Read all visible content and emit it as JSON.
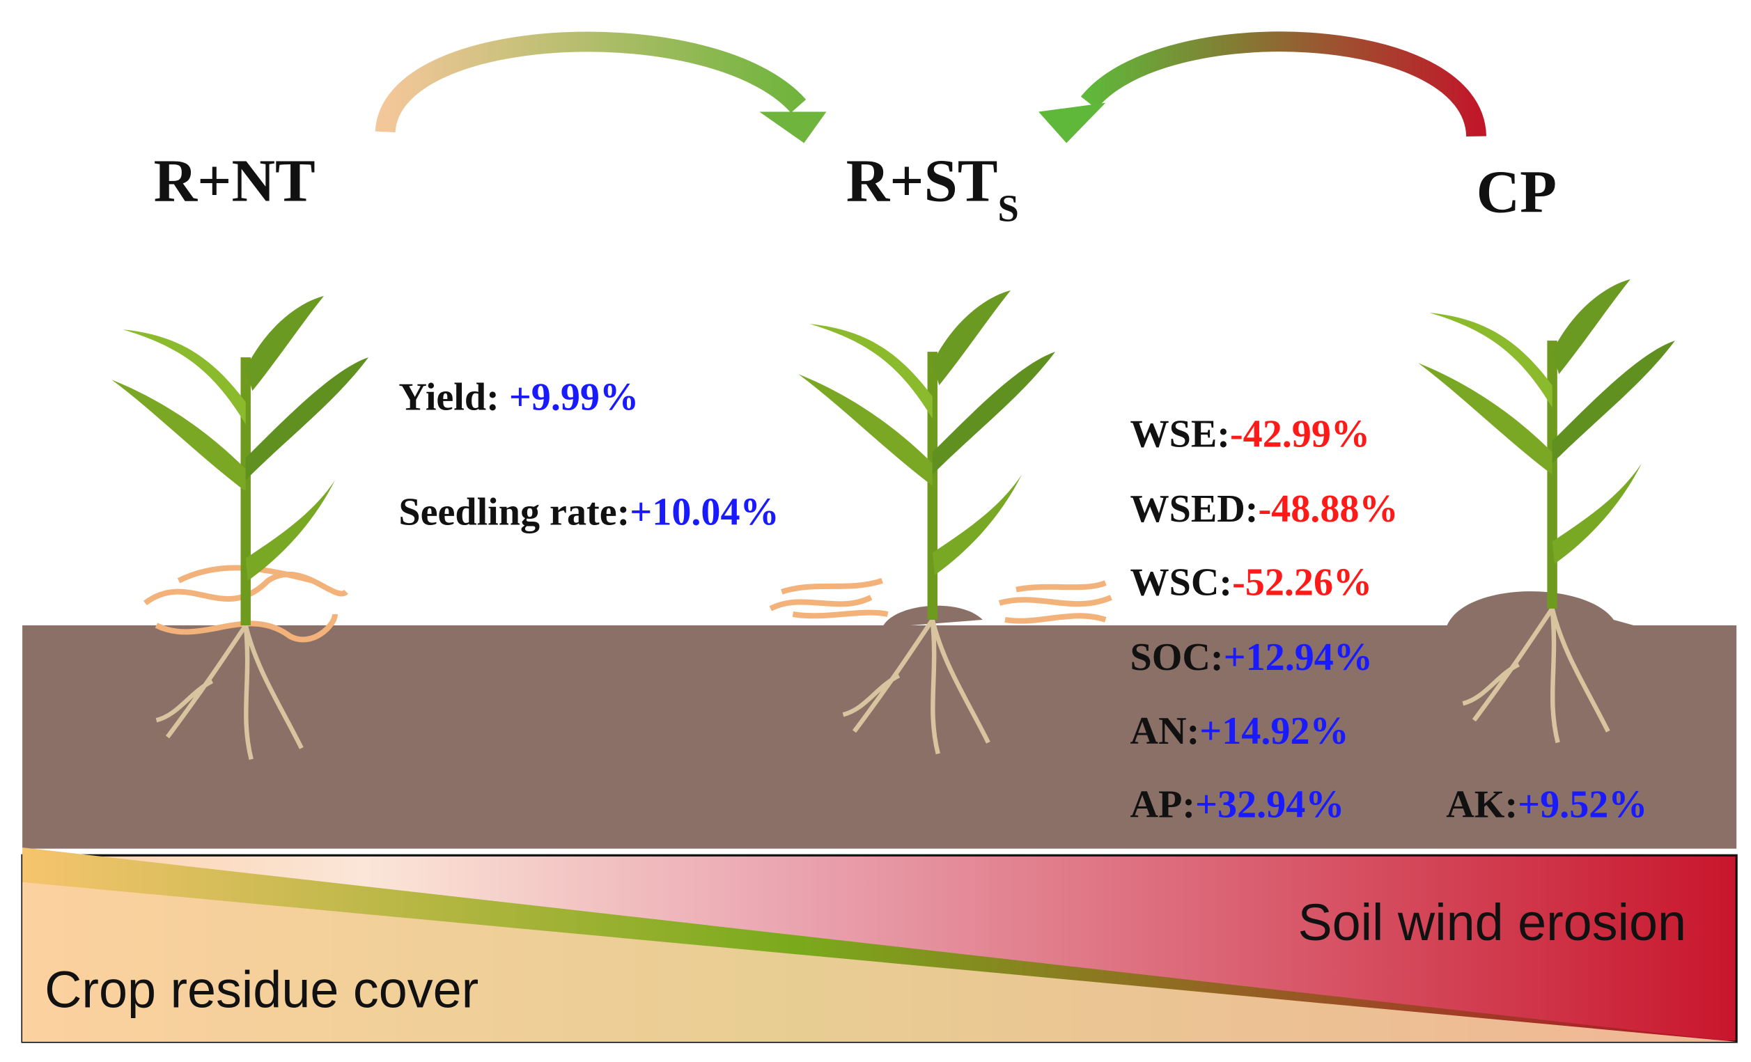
{
  "treatments": [
    {
      "label": "R+NT"
    },
    {
      "label": "R+ST",
      "subscript": "S"
    },
    {
      "label": "CP"
    }
  ],
  "left_metrics": [
    {
      "label": "Yield: ",
      "value": "+9.99%"
    },
    {
      "label": "Seedling rate:",
      "value": "+10.04%"
    }
  ],
  "right_metrics": [
    {
      "label": "WSE:",
      "value": "-42.99%"
    },
    {
      "label": "WSED:",
      "value": "-48.88%"
    },
    {
      "label": "WSC:",
      "value": "-52.26%"
    },
    {
      "label": "SOC:",
      "value": "+12.94%"
    },
    {
      "label": "AN:",
      "value": "+14.92%"
    },
    {
      "label": "AP:",
      "value": "+32.94%"
    },
    {
      "label": "AK:",
      "value": "+9.52%"
    }
  ],
  "gradient_bar": {
    "left_label": "Crop residue cover",
    "right_label": "Soil wind erosion"
  }
}
